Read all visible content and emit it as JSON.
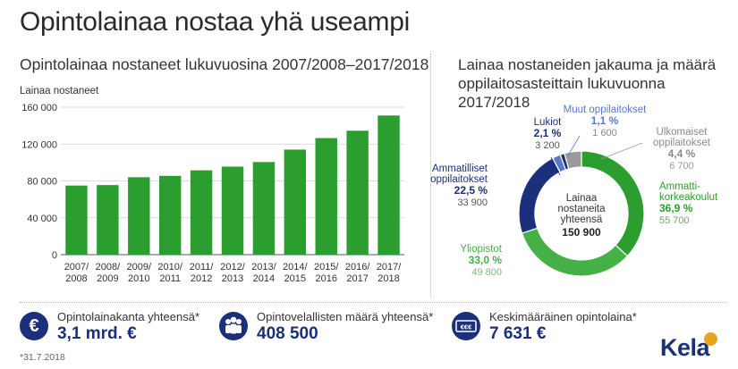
{
  "title": "Opintolainaa nostaa yhä useampi",
  "colors": {
    "green": "#2c9e2f",
    "light_green": "#45b045",
    "navy": "#1b2f7a",
    "blue": "#5a78c8",
    "gray": "#9a9a9a",
    "axis_label": "#333333"
  },
  "chart_data": [
    {
      "type": "bar",
      "title": "Opintolainaa nostaneet lukuvuosina 2007/2008–2017/2018",
      "ylabel": "Lainaa nostaneet",
      "xlabel": "",
      "ylim": [
        0,
        160000
      ],
      "yticks": [
        0,
        40000,
        80000,
        120000,
        160000
      ],
      "ytick_labels": [
        "0",
        "40 000",
        "80 000",
        "120 000",
        "160 000"
      ],
      "grid": true,
      "categories": [
        "2007/\n2008",
        "2008/\n2009",
        "2009/\n2010",
        "2010/\n2011",
        "2011/\n2012",
        "2012/\n2013",
        "2013/\n2014",
        "2014/\n2015",
        "2015/\n2016",
        "2016/\n2017",
        "2017/\n2018"
      ],
      "values": [
        75000,
        75500,
        84000,
        85500,
        91500,
        95500,
        100500,
        114000,
        126500,
        134500,
        151000
      ],
      "color": "#2c9e2f"
    },
    {
      "type": "pie",
      "title": "Lainaa nostaneiden jakauma ja määrä oppilaitosasteittain lukuvuonna 2017/2018",
      "center_label": [
        "Lainaa",
        "nostaneita",
        "yhteensä"
      ],
      "center_value": "150 900",
      "slices": [
        {
          "name": [
            "Ammatti-",
            "korkeakoulut"
          ],
          "percent": 36.9,
          "percent_label": "36,9 %",
          "count_label": "55 700",
          "color": "#2c9e2f"
        },
        {
          "name": [
            "Yliopistot"
          ],
          "percent": 33.0,
          "percent_label": "33,0 %",
          "count_label": "49 800",
          "color": "#45b045"
        },
        {
          "name": [
            "Ammatilliset",
            "oppilaitokset"
          ],
          "percent": 22.5,
          "percent_label": "22,5 %",
          "count_label": "33 900",
          "color": "#1b2f7a"
        },
        {
          "name": [
            "Lukiot"
          ],
          "percent": 2.1,
          "percent_label": "2,1 %",
          "count_label": "3 200",
          "color": "#5a78c8"
        },
        {
          "name": [
            "Muut oppilaitokset"
          ],
          "percent": 1.1,
          "percent_label": "1,1 %",
          "count_label": "1 600",
          "color": "#1b2f7a"
        },
        {
          "name": [
            "Ulkomaiset",
            "oppilaitokset"
          ],
          "percent": 4.4,
          "percent_label": "4,4 %",
          "count_label": "6 700",
          "color": "#9a9a9a"
        }
      ]
    }
  ],
  "kpis": [
    {
      "icon": "euro-icon",
      "glyph": "€",
      "label": "Opintolainakanta yhteensä*",
      "value": "3,1 mrd. €"
    },
    {
      "icon": "people-icon",
      "glyph": "",
      "label": "Opintovelallisten määrä yhteensä*",
      "value": "408 500"
    },
    {
      "icon": "banknote-icon",
      "glyph": "€€€",
      "label": "Keskimääräinen opintolaina*",
      "value": "7 631 €"
    }
  ],
  "footnote": "*31.7.2018",
  "logo": "Kela"
}
